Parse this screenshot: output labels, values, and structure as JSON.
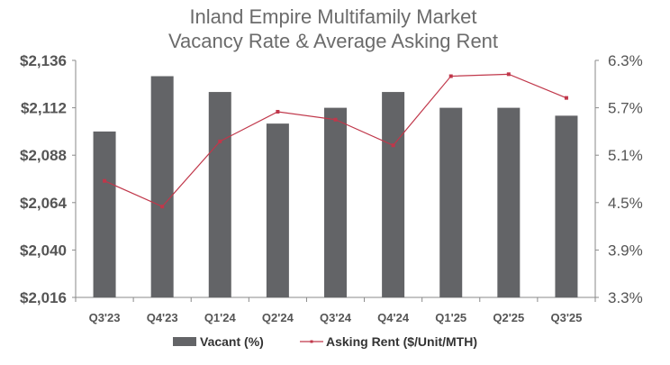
{
  "chart_data": {
    "type": "bar+line",
    "title": [
      "Inland Empire Multifamily Market",
      "Vacancy Rate & Average Asking Rent"
    ],
    "categories": [
      "Q3'23",
      "Q4'23",
      "Q1'24",
      "Q2'24",
      "Q3'24",
      "Q4'24",
      "Q1'25",
      "Q2'25",
      "Q3'25"
    ],
    "series": [
      {
        "name": "Vacant (%)",
        "type": "bar",
        "axis": "right",
        "color": "#636467",
        "values": [
          5.4,
          6.1,
          5.9,
          5.5,
          5.7,
          5.9,
          5.7,
          5.7,
          5.6
        ]
      },
      {
        "name": "Asking Rent ($/Unit/MTH)",
        "type": "line",
        "axis": "left",
        "color": "#c0374a",
        "values": [
          2075,
          2062,
          2095,
          2110,
          2106,
          2093,
          2128,
          2129,
          2117
        ]
      }
    ],
    "left_axis": {
      "ylim": [
        2016,
        2136
      ],
      "ticks": [
        "$2,016",
        "$2,040",
        "$2,064",
        "$2,088",
        "$2,112",
        "$2,136"
      ]
    },
    "right_axis": {
      "ylim": [
        3.3,
        6.3
      ],
      "ticks": [
        "3.3%",
        "3.9%",
        "4.5%",
        "5.1%",
        "5.7%",
        "6.3%"
      ]
    },
    "grid": false,
    "legend": "bottom"
  }
}
